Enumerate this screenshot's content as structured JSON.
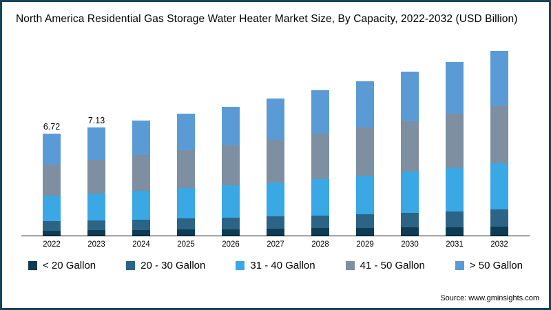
{
  "title": "North America Residential Gas Storage Water Heater Market Size, By Capacity, 2022-2032 (USD Billion)",
  "source": "Source: www.gminsights.com",
  "chart_data": {
    "type": "bar",
    "stacked": true,
    "title": "North America Residential Gas Storage Water Heater Market Size, By Capacity, 2022-2032 (USD Billion)",
    "xlabel": "",
    "ylabel": "USD Billion",
    "ylim": [
      0,
      12.5
    ],
    "grid": false,
    "legend_position": "bottom",
    "categories": [
      "2022",
      "2023",
      "2024",
      "2025",
      "2026",
      "2027",
      "2028",
      "2029",
      "2030",
      "2031",
      "2032"
    ],
    "totals": [
      6.72,
      7.13,
      7.57,
      8.03,
      8.52,
      9.05,
      9.6,
      10.19,
      10.82,
      11.48,
      12.19
    ],
    "value_labels": [
      "6.72",
      "7.13",
      "",
      "",
      "",
      "",
      "",
      "",
      "",
      "",
      ""
    ],
    "series": [
      {
        "name": "< 20 Gallon",
        "color": "#0e3c54",
        "values": [
          0.34,
          0.36,
          0.38,
          0.4,
          0.43,
          0.45,
          0.48,
          0.51,
          0.54,
          0.57,
          0.61
        ]
      },
      {
        "name": "20 - 30 Gallon",
        "color": "#2c6486",
        "values": [
          0.6,
          0.64,
          0.68,
          0.72,
          0.77,
          0.81,
          0.86,
          0.92,
          0.97,
          1.03,
          1.1
        ]
      },
      {
        "name": "31 - 40 Gallon",
        "color": "#39a8e5",
        "values": [
          1.68,
          1.78,
          1.89,
          2.01,
          2.13,
          2.26,
          2.4,
          2.55,
          2.71,
          2.87,
          3.05
        ]
      },
      {
        "name": "41 - 50 Gallon",
        "color": "#7d8fa1",
        "values": [
          2.08,
          2.21,
          2.35,
          2.49,
          2.64,
          2.81,
          2.98,
          3.16,
          3.35,
          3.56,
          3.78
        ]
      },
      {
        "name": "> 50 Gallon",
        "color": "#5b9bd5",
        "values": [
          2.02,
          2.14,
          2.27,
          2.41,
          2.55,
          2.72,
          2.88,
          3.05,
          3.25,
          3.45,
          3.65
        ]
      }
    ]
  }
}
